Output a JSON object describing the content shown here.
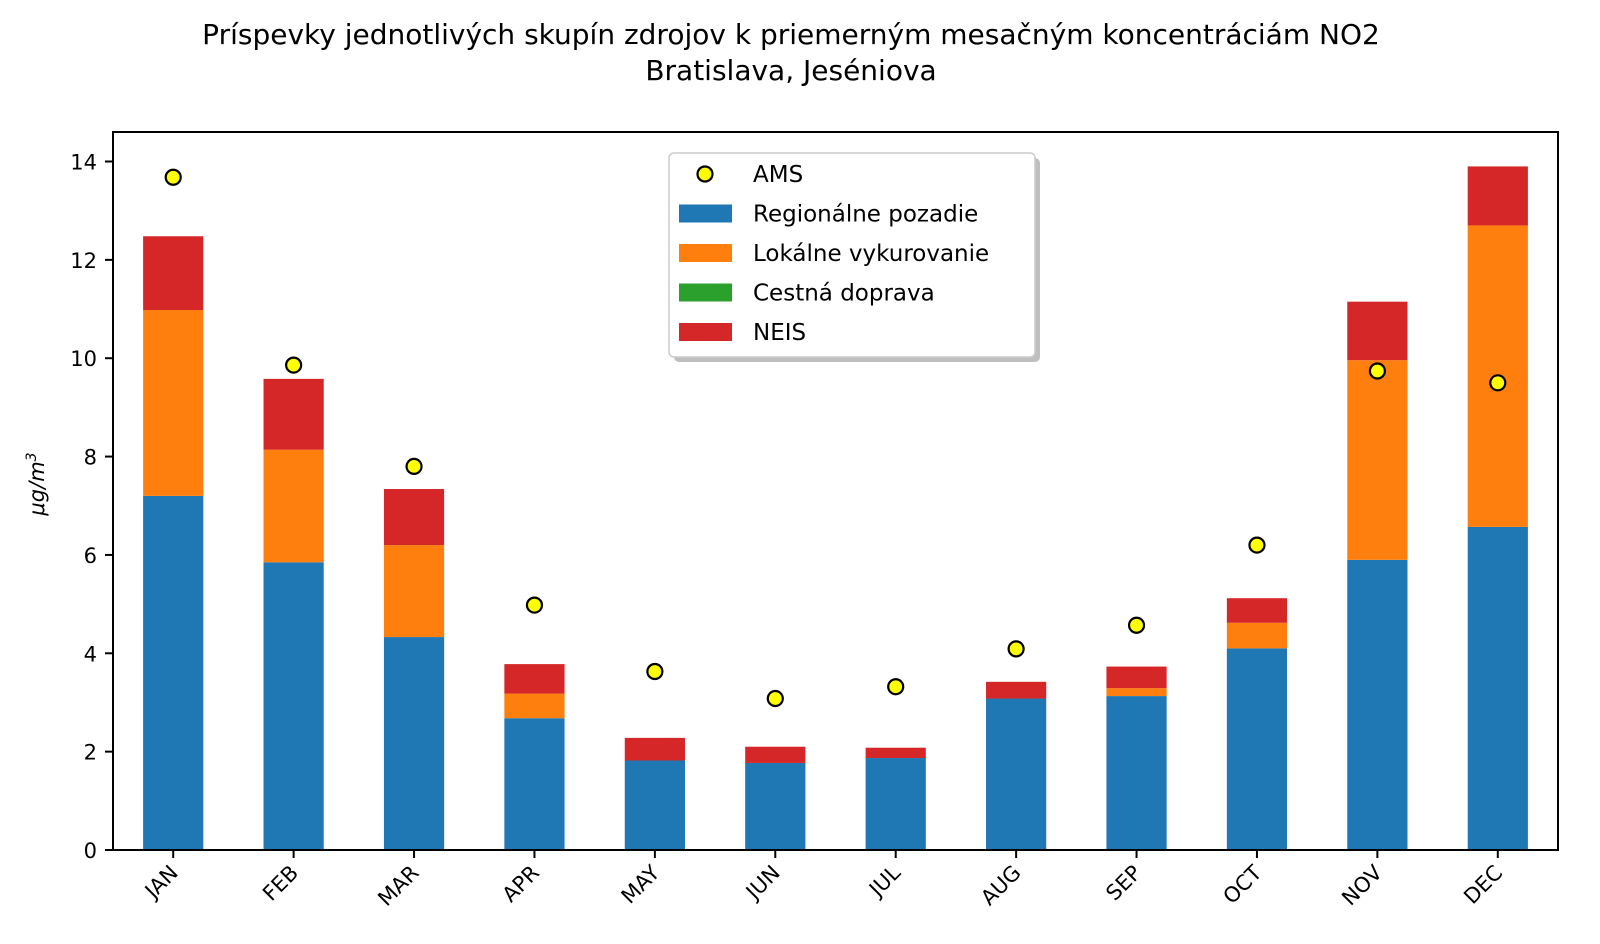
{
  "chart_data": {
    "type": "bar",
    "stacked": true,
    "title": "Príspevky jednotlivých skupín zdrojov k priemerným mesačným koncentráciám NO2",
    "subtitle": "Bratislava, Jeséniova",
    "ylabel": "μg/m",
    "ylabel_sup": "3",
    "xlabel": "",
    "ylim": [
      0,
      14.6
    ],
    "yticks": [
      0,
      2,
      4,
      6,
      8,
      10,
      12,
      14
    ],
    "grid": false,
    "legend_position": "top-center",
    "categories": [
      "JAN",
      "FEB",
      "MAR",
      "APR",
      "MAY",
      "JUN",
      "JUL",
      "AUG",
      "SEP",
      "OCT",
      "NOV",
      "DEC"
    ],
    "series": [
      {
        "name": "Regionálne pozadie",
        "color": "#1f77b4",
        "values": [
          7.2,
          5.85,
          4.33,
          2.68,
          1.82,
          1.77,
          1.87,
          3.08,
          3.13,
          4.1,
          5.9,
          6.57
        ]
      },
      {
        "name": "Lokálne vykurovanie",
        "color": "#ff7f0e",
        "values": [
          3.78,
          2.29,
          1.87,
          0.5,
          0.0,
          0.0,
          0.0,
          0.0,
          0.16,
          0.52,
          4.06,
          6.13
        ]
      },
      {
        "name": "Cestná doprava",
        "color": "#2ca02c",
        "values": [
          0,
          0,
          0,
          0,
          0,
          0,
          0,
          0,
          0,
          0,
          0,
          0
        ]
      },
      {
        "name": "NEIS",
        "color": "#d62728",
        "values": [
          1.5,
          1.44,
          1.14,
          0.6,
          0.46,
          0.33,
          0.21,
          0.34,
          0.44,
          0.5,
          1.19,
          1.2
        ]
      }
    ],
    "points": {
      "name": "AMS",
      "color": "#ffff00",
      "edge_color": "#000000",
      "values": [
        13.68,
        9.86,
        7.8,
        4.98,
        3.63,
        3.08,
        3.32,
        4.09,
        4.57,
        6.2,
        9.74,
        9.5
      ]
    }
  }
}
